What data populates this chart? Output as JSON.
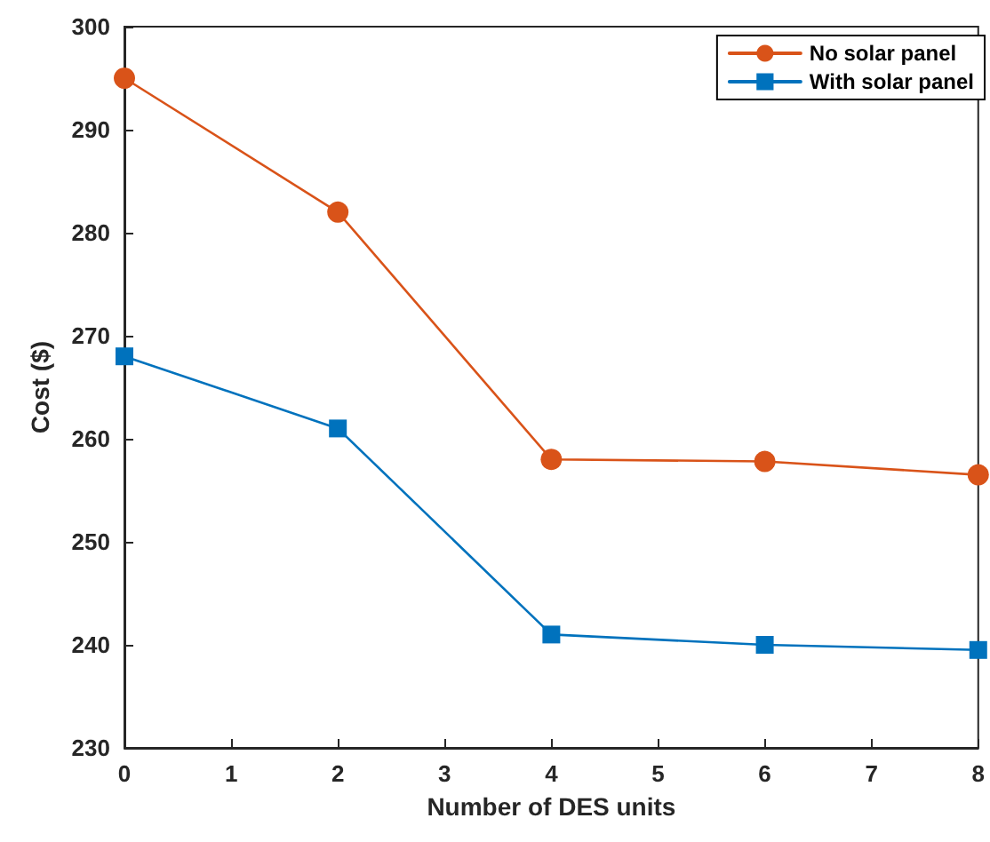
{
  "chart_data": {
    "type": "line",
    "xlabel": "Number of DES units",
    "ylabel": "Cost ($)",
    "x": [
      0,
      2,
      4,
      6,
      8
    ],
    "series": [
      {
        "name": "No solar panel",
        "color": "#d95319",
        "marker": "circle",
        "values": [
          295,
          282,
          258,
          257.8,
          256.5
        ]
      },
      {
        "name": "With solar panel",
        "color": "#0072bd",
        "marker": "square",
        "values": [
          268,
          261,
          241,
          240,
          239.5
        ]
      }
    ],
    "xlim": [
      0,
      8
    ],
    "xticks": [
      0,
      1,
      2,
      3,
      4,
      5,
      6,
      7,
      8
    ],
    "ylim": [
      230,
      300
    ],
    "yticks": [
      230,
      240,
      250,
      260,
      270,
      280,
      290,
      300
    ],
    "grid": false,
    "legend": "top right",
    "line_style": "solid"
  }
}
